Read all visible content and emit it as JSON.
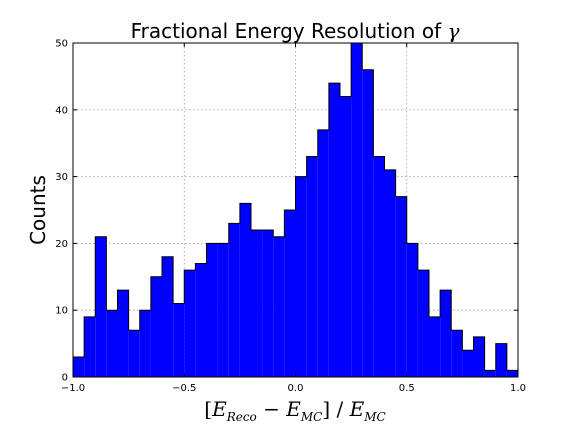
{
  "chart_data": {
    "type": "bar",
    "title": "Fractional Energy Resolution of γ",
    "xlabel": "[E_Reco − E_MC] / E_MC",
    "ylabel": "Counts",
    "xlim": [
      -1.0,
      1.0
    ],
    "ylim": [
      0,
      50
    ],
    "x_ticks": [
      -1.0,
      -0.5,
      0.0,
      0.5,
      1.0
    ],
    "x_tick_labels": [
      "−1.0",
      "−0.5",
      "0.0",
      "0.5",
      "1.0"
    ],
    "y_ticks": [
      0,
      10,
      20,
      30,
      40,
      50
    ],
    "y_tick_labels": [
      "0",
      "10",
      "20",
      "30",
      "40",
      "50"
    ],
    "grid": true,
    "bin_edges_start": -1.0,
    "bin_width": 0.05,
    "values": [
      3,
      9,
      21,
      10,
      13,
      7,
      10,
      15,
      18,
      11,
      16,
      17,
      20,
      20,
      23,
      26,
      22,
      22,
      21,
      25,
      30,
      33,
      37,
      44,
      42,
      50,
      46,
      33,
      31,
      27,
      20,
      16,
      9,
      13,
      7,
      4,
      6,
      1,
      5,
      1
    ],
    "bar_color": "#0000ff",
    "edge_color": "#000000"
  }
}
